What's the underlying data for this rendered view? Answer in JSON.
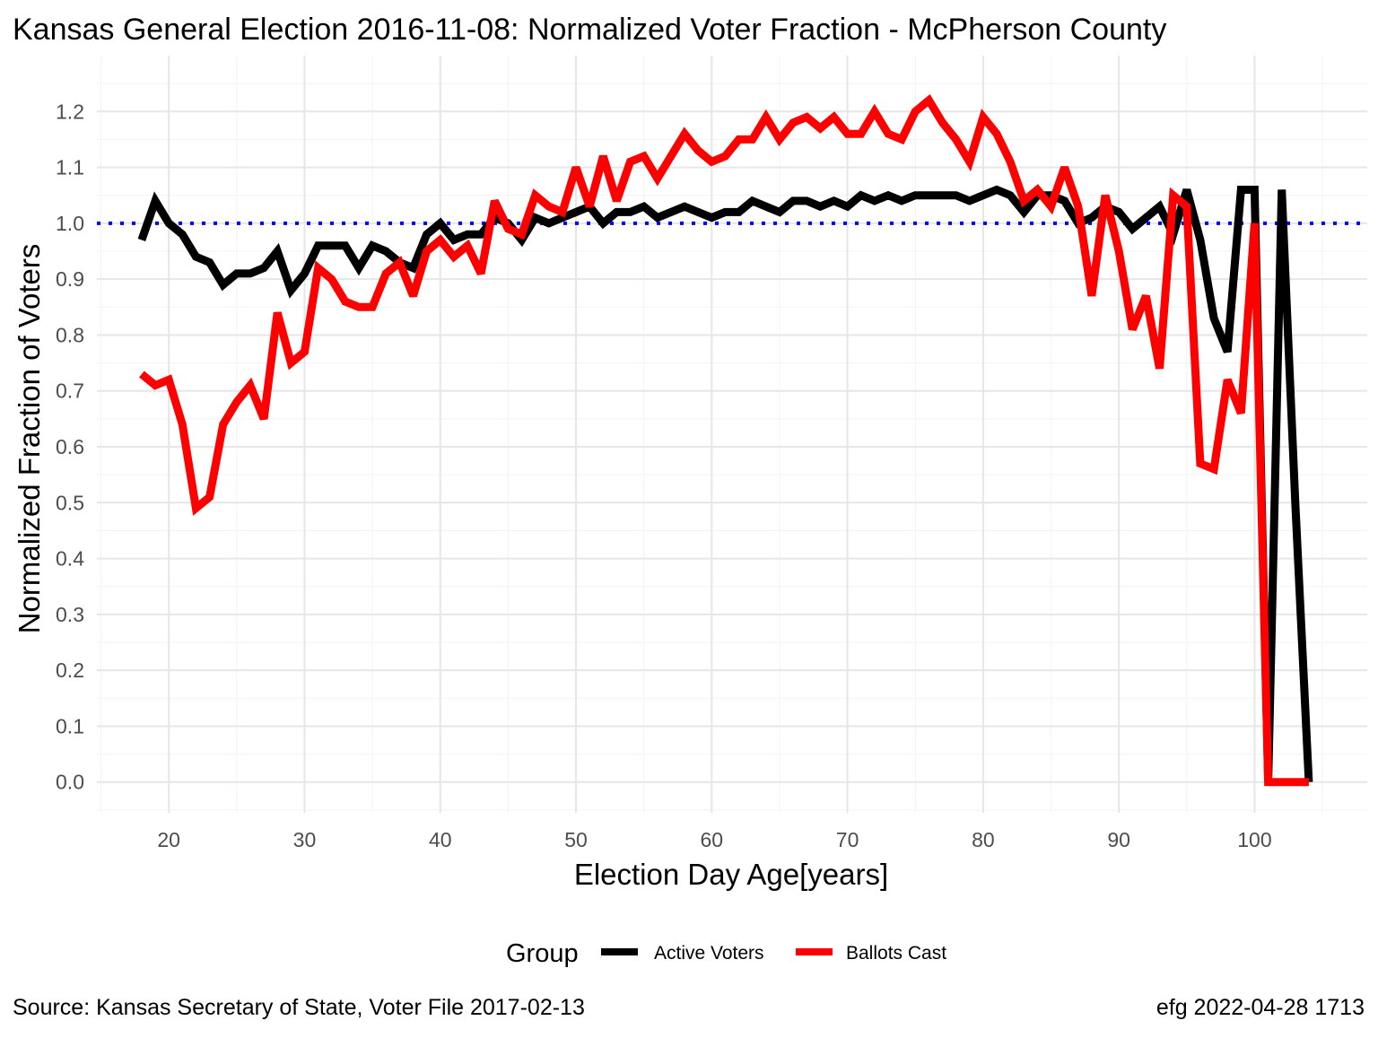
{
  "chart_data": {
    "type": "line",
    "title": "Kansas General Election 2016-11-08:  Normalized Voter Fraction - McPherson County",
    "xlabel": "Election Day Age[years]",
    "ylabel": "Normalized Fraction of Voters",
    "xlim": [
      14.7,
      108.3
    ],
    "ylim": [
      -0.055,
      1.3
    ],
    "x_ticks": [
      20,
      30,
      40,
      50,
      60,
      70,
      80,
      90,
      100
    ],
    "y_ticks": [
      0.0,
      0.1,
      0.2,
      0.3,
      0.4,
      0.5,
      0.6,
      0.7,
      0.8,
      0.9,
      1.0,
      1.1,
      1.2
    ],
    "y_tick_labels": [
      "0.0",
      "0.1",
      "0.2",
      "0.3",
      "0.4",
      "0.5",
      "0.6",
      "0.7",
      "0.8",
      "0.9",
      "1.0",
      "1.1",
      "1.2"
    ],
    "grid": true,
    "reference_line": {
      "y": 1.0,
      "color": "#0000ff",
      "style": "dotted"
    },
    "legend": {
      "title": "Group",
      "position": "bottom"
    },
    "series": [
      {
        "name": "Active Voters",
        "color": "#000000",
        "x": [
          18,
          19,
          20,
          21,
          22,
          23,
          24,
          25,
          26,
          27,
          28,
          29,
          30,
          31,
          32,
          33,
          34,
          35,
          36,
          37,
          38,
          39,
          40,
          41,
          42,
          43,
          44,
          45,
          46,
          47,
          48,
          49,
          50,
          51,
          52,
          53,
          54,
          55,
          56,
          57,
          58,
          59,
          60,
          61,
          62,
          63,
          64,
          65,
          66,
          67,
          68,
          69,
          70,
          71,
          72,
          73,
          74,
          75,
          76,
          77,
          78,
          79,
          80,
          81,
          82,
          83,
          84,
          85,
          86,
          87,
          88,
          89,
          90,
          91,
          92,
          93,
          94,
          95,
          96,
          97,
          98,
          99,
          100,
          101,
          102,
          103,
          104
        ],
        "values": [
          0.97,
          1.04,
          1.0,
          0.98,
          0.94,
          0.93,
          0.89,
          0.91,
          0.91,
          0.92,
          0.95,
          0.88,
          0.91,
          0.96,
          0.96,
          0.96,
          0.92,
          0.96,
          0.95,
          0.93,
          0.92,
          0.98,
          1.0,
          0.97,
          0.98,
          0.98,
          1.01,
          1.0,
          0.97,
          1.01,
          1.0,
          1.01,
          1.02,
          1.03,
          1.0,
          1.02,
          1.02,
          1.03,
          1.01,
          1.02,
          1.03,
          1.02,
          1.01,
          1.02,
          1.02,
          1.04,
          1.03,
          1.02,
          1.04,
          1.04,
          1.03,
          1.04,
          1.03,
          1.05,
          1.04,
          1.05,
          1.04,
          1.05,
          1.05,
          1.05,
          1.05,
          1.04,
          1.05,
          1.06,
          1.05,
          1.02,
          1.05,
          1.05,
          1.04,
          1.0,
          1.01,
          1.03,
          1.02,
          0.99,
          1.01,
          1.03,
          0.98,
          1.06,
          0.97,
          0.83,
          0.77,
          1.06,
          1.06,
          0.0,
          1.06,
          0.5,
          0.0
        ]
      },
      {
        "name": "Ballots Cast",
        "color": "#ff0000",
        "x": [
          18,
          19,
          20,
          21,
          22,
          23,
          24,
          25,
          26,
          27,
          28,
          29,
          30,
          31,
          32,
          33,
          34,
          35,
          36,
          37,
          38,
          39,
          40,
          41,
          42,
          43,
          44,
          45,
          46,
          47,
          48,
          49,
          50,
          51,
          52,
          53,
          54,
          55,
          56,
          57,
          58,
          59,
          60,
          61,
          62,
          63,
          64,
          65,
          66,
          67,
          68,
          69,
          70,
          71,
          72,
          73,
          74,
          75,
          76,
          77,
          78,
          79,
          80,
          81,
          82,
          83,
          84,
          85,
          86,
          87,
          88,
          89,
          90,
          91,
          92,
          93,
          94,
          95,
          96,
          97,
          98,
          99,
          100,
          101,
          102,
          103,
          104
        ],
        "values": [
          0.73,
          0.71,
          0.72,
          0.64,
          0.49,
          0.51,
          0.64,
          0.68,
          0.71,
          0.65,
          0.84,
          0.75,
          0.77,
          0.92,
          0.9,
          0.86,
          0.85,
          0.85,
          0.91,
          0.93,
          0.87,
          0.95,
          0.97,
          0.94,
          0.96,
          0.91,
          1.04,
          0.99,
          0.98,
          1.05,
          1.03,
          1.02,
          1.1,
          1.03,
          1.12,
          1.04,
          1.11,
          1.12,
          1.08,
          1.12,
          1.16,
          1.13,
          1.11,
          1.12,
          1.15,
          1.15,
          1.19,
          1.15,
          1.18,
          1.19,
          1.17,
          1.19,
          1.16,
          1.16,
          1.2,
          1.16,
          1.15,
          1.2,
          1.22,
          1.18,
          1.15,
          1.11,
          1.19,
          1.16,
          1.11,
          1.04,
          1.06,
          1.03,
          1.1,
          1.03,
          0.87,
          1.05,
          0.95,
          0.81,
          0.87,
          0.74,
          1.05,
          1.03,
          0.57,
          0.56,
          0.72,
          0.66,
          1.0,
          0.0,
          0.0,
          0.0,
          0.0
        ]
      }
    ]
  },
  "caption_left": "Source:  Kansas Secretary of State, Voter File  2017-02-13",
  "caption_right": "efg 2022-04-28 1713"
}
